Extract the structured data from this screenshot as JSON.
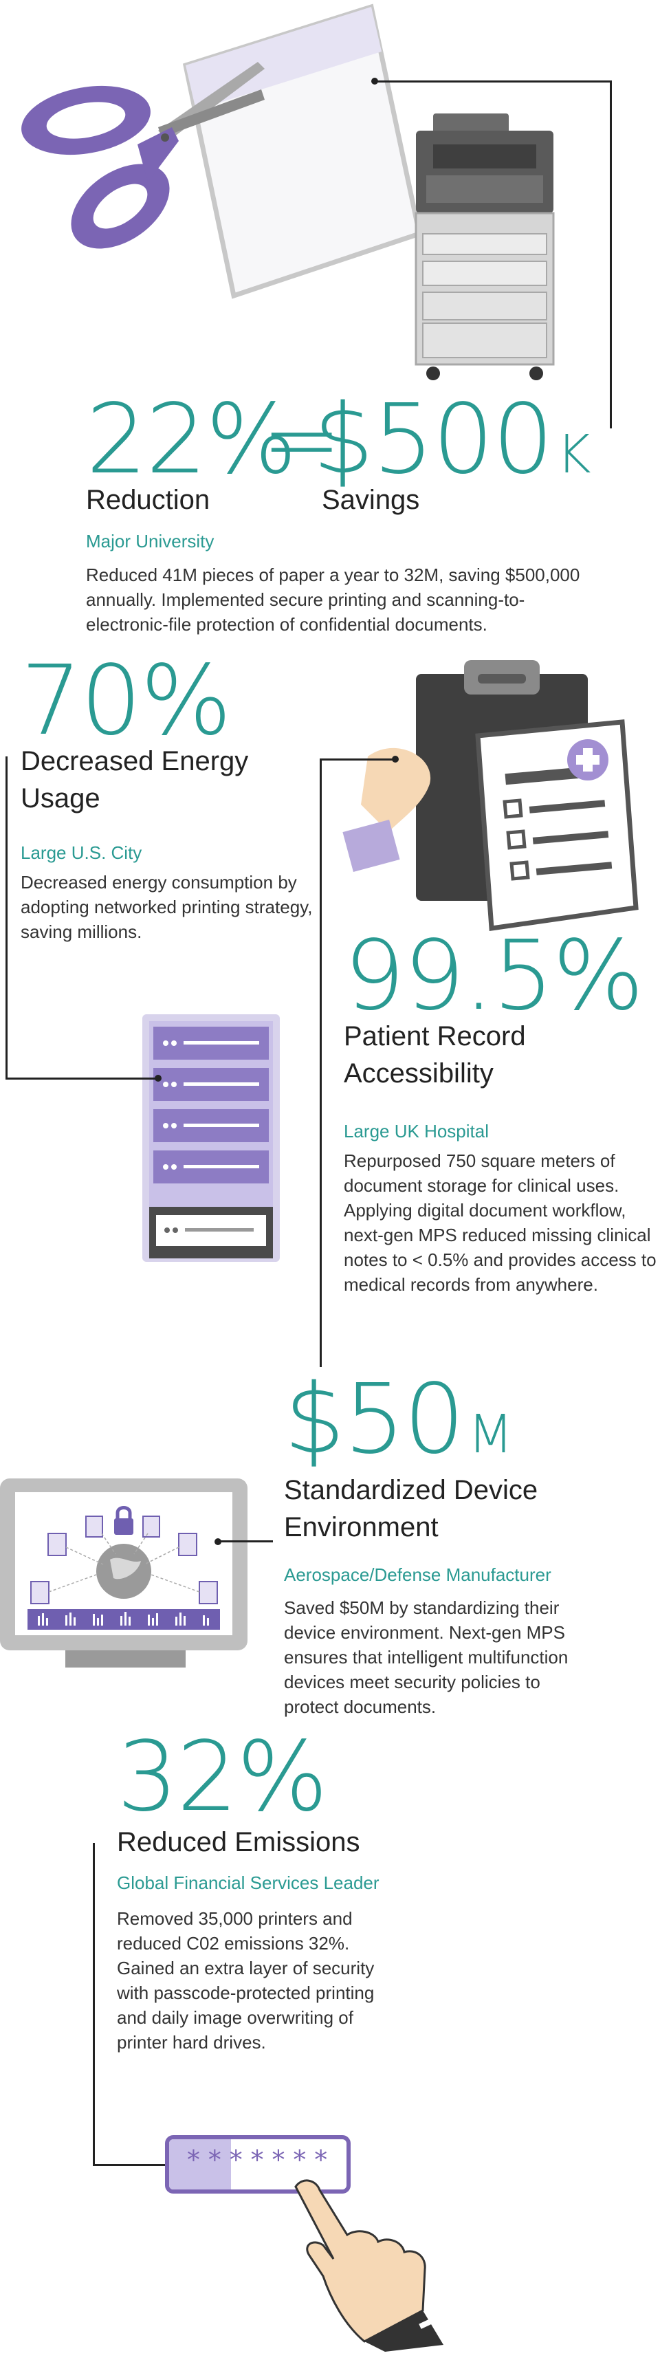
{
  "colors": {
    "teal": "#2a9a92",
    "purple": "#7b65b4",
    "lavender": "#c9c1e8",
    "gray": "#5a5a5a"
  },
  "stats": [
    {
      "value_left": "22%",
      "equals": "=",
      "value_right": "$500",
      "value_right_unit": "K",
      "heading_left": "Reduction",
      "heading_right": "Savings",
      "org": "Major University",
      "description": "Reduced 41M pieces of paper a year to 32M, saving $500,000 annually. Implemented secure printing and scanning-to-electronic-file protection of confidential documents.",
      "icons": [
        "scissors-icon",
        "paper-icon",
        "printer-icon"
      ]
    },
    {
      "value": "70%",
      "heading": "Decreased Energy Usage",
      "org": "Large U.S. City",
      "description": "Decreased energy consumption by adopting networked printing strategy, saving millions.",
      "icons": [
        "server-rack-icon"
      ]
    },
    {
      "value": "99.5%",
      "heading": "Patient Record Accessibility",
      "org": "Large UK Hospital",
      "description": "Repurposed 750 square meters of document storage for clinical uses. Applying digital document workflow, next-gen MPS reduced missing clinical notes to < 0.5% and provides access to medical records from anywhere.",
      "icons": [
        "clipboard-icon",
        "medical-record-icon",
        "hand-icon"
      ]
    },
    {
      "value": "$50",
      "value_unit": "M",
      "heading": "Standardized Device Environment",
      "org": "Aerospace/Defense Manufacturer",
      "description": "Saved $50M by standardizing their device environment. Next-gen MPS ensures that intelligent multifunction devices meet security policies to protect documents.",
      "icons": [
        "monitor-icon",
        "globe-icon",
        "lock-icon",
        "document-icon"
      ]
    },
    {
      "value": "32%",
      "heading": "Reduced Emissions",
      "org": "Global Financial Services Leader",
      "description": "Removed 35,000 printers and reduced C02 emissions 32%. Gained an extra layer of security with passcode-protected printing and daily image overwriting of printer hard drives.",
      "icons": [
        "passcode-field-icon",
        "pointing-hand-icon"
      ],
      "passcode": "*******"
    }
  ]
}
